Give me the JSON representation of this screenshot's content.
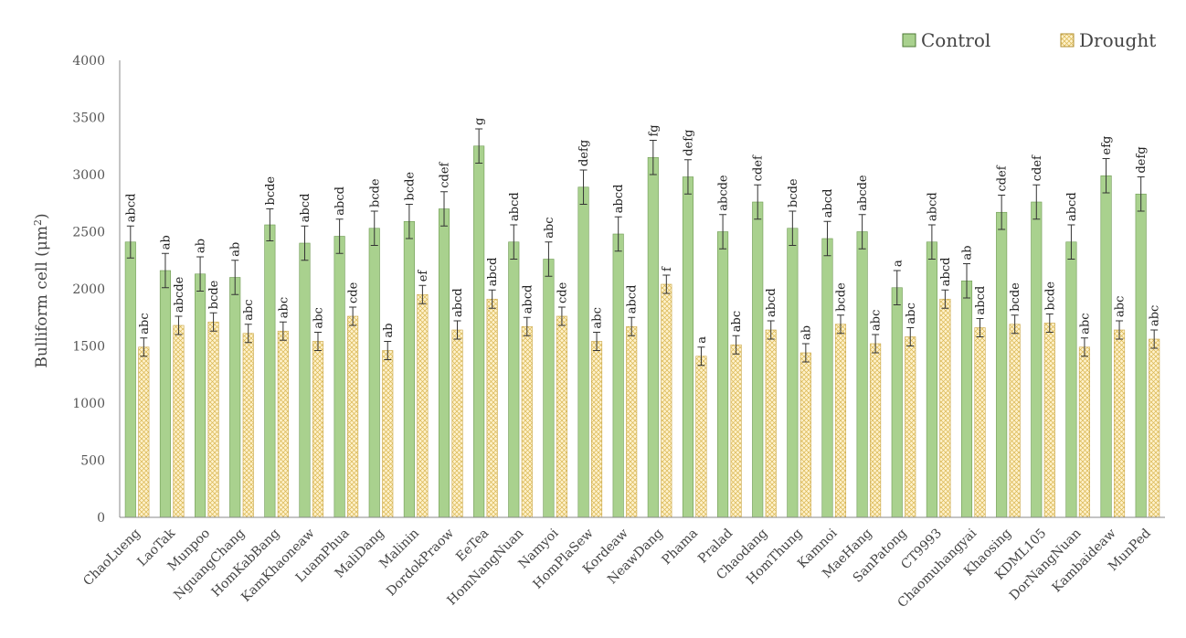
{
  "chart_data": {
    "type": "bar",
    "ylabel_main": "Bulliform cell (μm",
    "ylabel_sup": "2",
    "ylabel_close": ")",
    "ylim": [
      0,
      4000
    ],
    "yticks": [
      "0",
      "500",
      "1000",
      "1500",
      "2000",
      "2500",
      "3000",
      "3500",
      "4000"
    ],
    "legend_position": "top-right",
    "categories": [
      "ChaoLueng",
      "LaoTak",
      "Munpoo",
      "NguangChang",
      "HomKabBang",
      "KamKhaoneaw",
      "LuamPhua",
      "MaliDang",
      "Malinin",
      "DordokPraow",
      "EeTea",
      "HomNangNuan",
      "Namyoi",
      "HomPlaSew",
      "Kordeaw",
      "NeawDang",
      "Phama",
      "Pralad",
      "Chaodang",
      "HomThung",
      "Kamnoi",
      "MaeHang",
      "SanPatong",
      "CT9993",
      "Chaomuhangyai",
      "Khaosing",
      "KDML105",
      "DorNangNuan",
      "Kambaideaw",
      "MunPed"
    ],
    "series": [
      {
        "name": "Control",
        "color": "#a9d18e",
        "values": [
          2410,
          2160,
          2130,
          2100,
          2560,
          2400,
          2460,
          2530,
          2590,
          2700,
          3250,
          2410,
          2260,
          2890,
          2480,
          3150,
          2980,
          2500,
          2760,
          2530,
          2440,
          2500,
          2010,
          2410,
          2070,
          2670,
          2760,
          2410,
          2990,
          2830
        ],
        "errors": [
          140,
          150,
          150,
          150,
          140,
          150,
          150,
          150,
          150,
          150,
          150,
          150,
          150,
          150,
          150,
          150,
          150,
          150,
          150,
          150,
          150,
          150,
          150,
          150,
          150,
          150,
          150,
          150,
          150,
          150
        ],
        "letters": [
          "abcd",
          "ab",
          "ab",
          "ab",
          "bcde",
          "abcd",
          "abcd",
          "bcde",
          "bcde",
          "cdef",
          "g",
          "abcd",
          "abc",
          "defg",
          "abcd",
          "fg",
          "defg",
          "abcde",
          "cdef",
          "bcde",
          "abcd",
          "abcde",
          "a",
          "abcd",
          "ab",
          "cdef",
          "cdef",
          "abcd",
          "efg",
          "defg"
        ]
      },
      {
        "name": "Drought",
        "color": "#fff2cc",
        "values": [
          1490,
          1680,
          1710,
          1610,
          1630,
          1540,
          1760,
          1460,
          1950,
          1640,
          1910,
          1670,
          1760,
          1540,
          1670,
          2040,
          1410,
          1510,
          1640,
          1440,
          1690,
          1520,
          1580,
          1910,
          1660,
          1690,
          1700,
          1490,
          1640,
          1560
        ],
        "errors": [
          80,
          80,
          80,
          80,
          80,
          80,
          80,
          80,
          80,
          80,
          80,
          80,
          80,
          80,
          80,
          80,
          80,
          80,
          80,
          80,
          80,
          80,
          80,
          80,
          80,
          80,
          80,
          80,
          80,
          80
        ],
        "letters": [
          "abc",
          "abcde",
          "bcde",
          "abc",
          "abc",
          "abc",
          "cde",
          "ab",
          "ef",
          "abcd",
          "abcd",
          "abcd",
          "cde",
          "abc",
          "abcd",
          "f",
          "a",
          "abc",
          "abcd",
          "ab",
          "bcde",
          "abc",
          "abc",
          "abcd",
          "abcd",
          "bcde",
          "bcde",
          "abc",
          "abc",
          "abc"
        ]
      }
    ]
  }
}
